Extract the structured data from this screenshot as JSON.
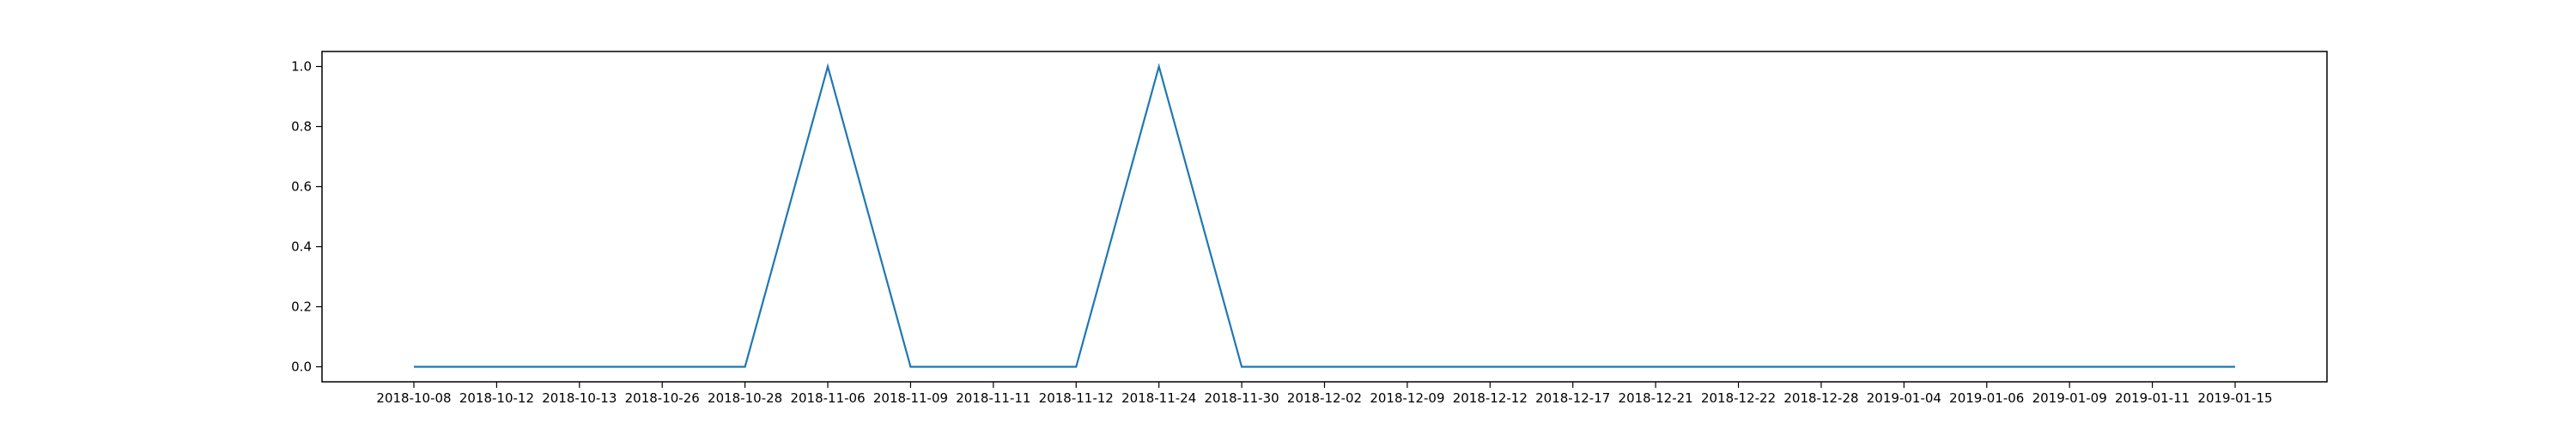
{
  "chart_data": {
    "type": "line",
    "title": "",
    "xlabel": "",
    "ylabel": "",
    "x_axis_kind": "categorical-dates",
    "grid": false,
    "legend": "none",
    "ylim": [
      -0.05,
      1.05
    ],
    "yticks": [
      "0.0",
      "0.2",
      "0.4",
      "0.6",
      "0.8",
      "1.0"
    ],
    "categories": [
      "2018-10-08",
      "2018-10-12",
      "2018-10-13",
      "2018-10-26",
      "2018-10-28",
      "2018-11-06",
      "2018-11-09",
      "2018-11-11",
      "2018-11-12",
      "2018-11-24",
      "2018-11-30",
      "2018-12-02",
      "2018-12-09",
      "2018-12-12",
      "2018-12-17",
      "2018-12-21",
      "2018-12-22",
      "2018-12-28",
      "2019-01-04",
      "2019-01-06",
      "2019-01-09",
      "2019-01-11",
      "2019-01-15"
    ],
    "series": [
      {
        "color": "#1f77b4",
        "values": [
          0,
          0,
          0,
          0,
          0,
          1,
          0,
          0,
          0,
          1,
          0,
          0,
          0,
          0,
          0,
          0,
          0,
          0,
          0,
          0,
          0,
          0,
          0
        ]
      }
    ]
  }
}
